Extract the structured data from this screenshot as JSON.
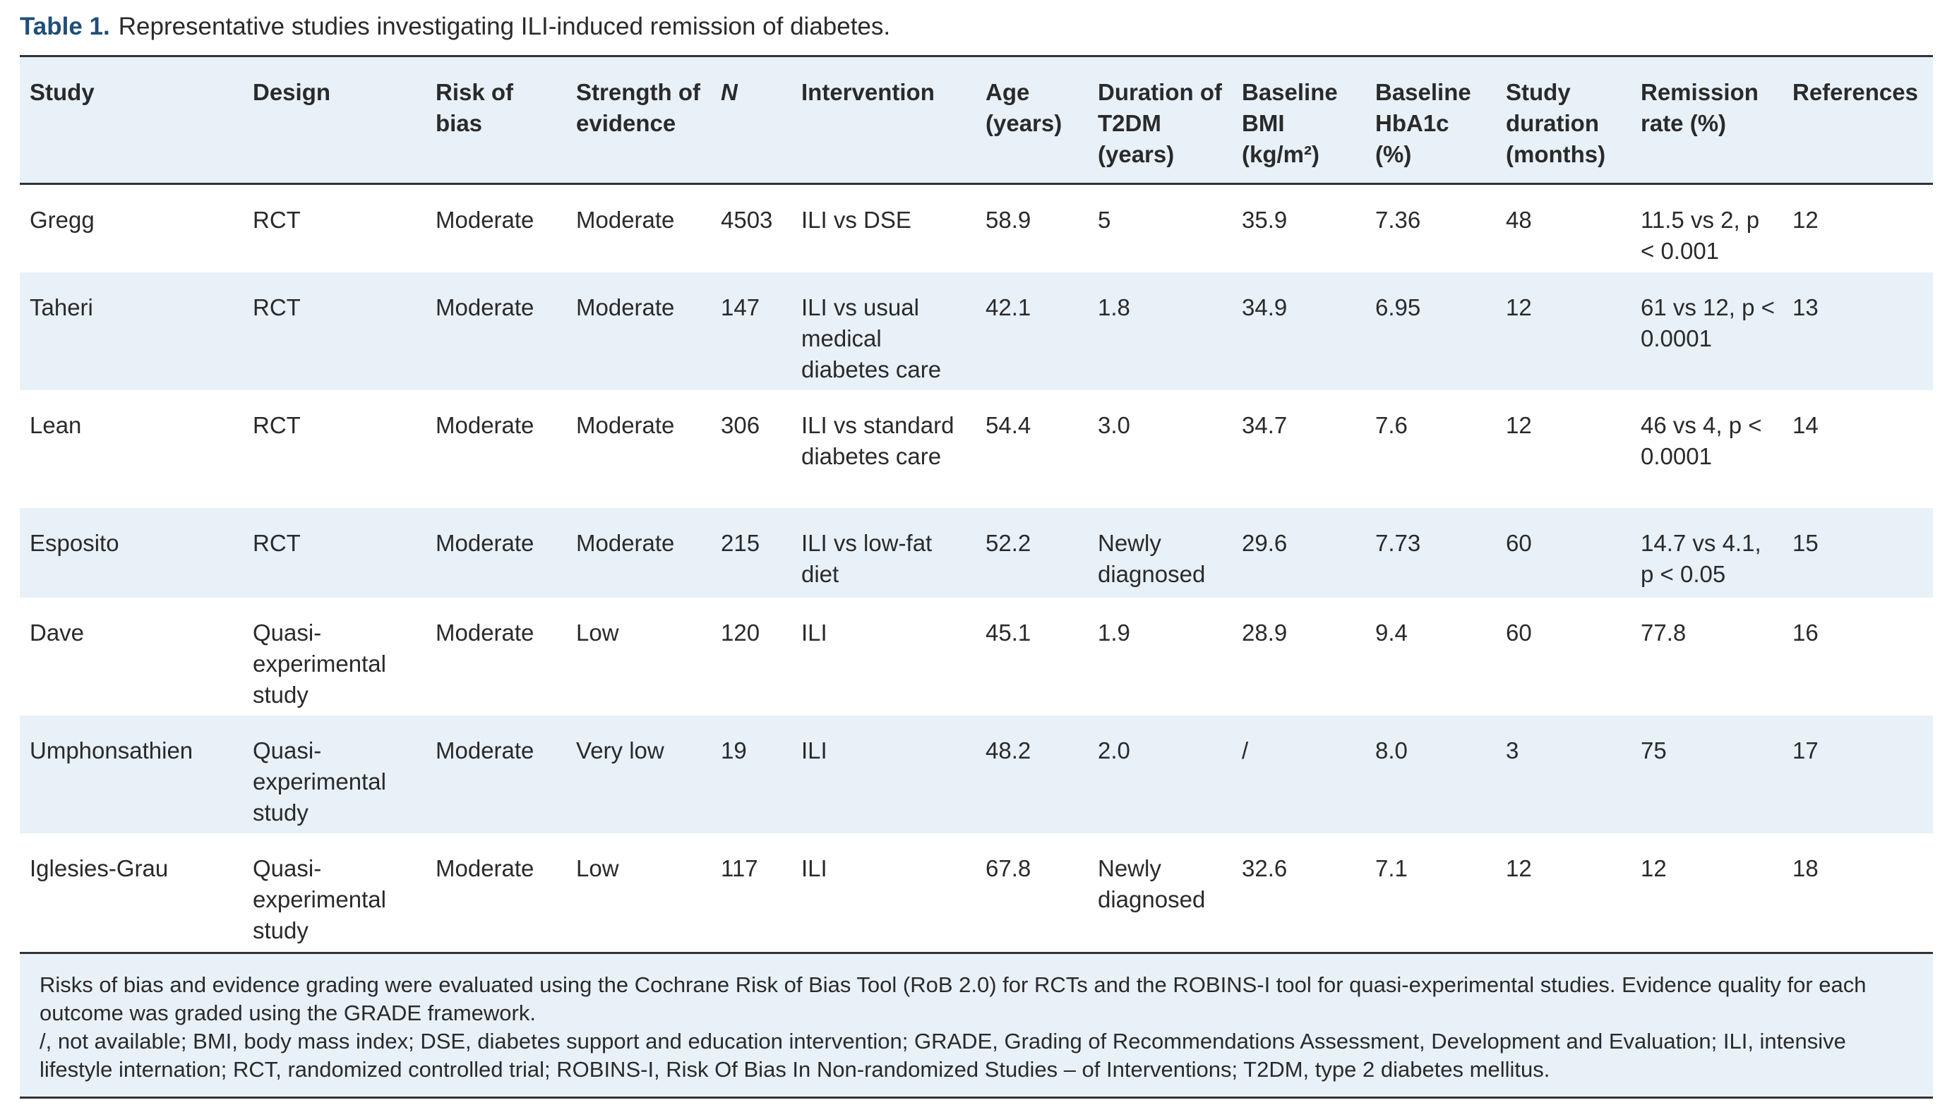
{
  "caption": {
    "label": "Table 1.",
    "text": "Representative studies investigating ILI-induced remission of diabetes."
  },
  "table": {
    "header": [
      "Study",
      "Design",
      "Risk of bias",
      "Strength of evidence",
      "N",
      "Intervention",
      "Age (years)",
      "Duration of T2DM (years)",
      "Baseline BMI (kg/m²)",
      "Baseline HbA1c (%)",
      "Study duration (months)",
      "Remission rate (%)",
      "References"
    ],
    "rows": [
      [
        "Gregg",
        "RCT",
        "Moderate",
        "Moderate",
        "4503",
        "ILI vs DSE",
        "58.9",
        "5",
        "35.9",
        "7.36",
        "48",
        "11.5 vs 2, p < 0.001",
        "12"
      ],
      [
        "Taheri",
        "RCT",
        "Moderate",
        "Moderate",
        "147",
        "ILI vs usual medical diabetes care",
        "42.1",
        "1.8",
        "34.9",
        "6.95",
        "12",
        "61 vs 12, p < 0.0001",
        "13"
      ],
      [
        "Lean",
        "RCT",
        "Moderate",
        "Moderate",
        "306",
        "ILI vs standard diabetes care",
        "54.4",
        "3.0",
        "34.7",
        "7.6",
        "12",
        "46 vs 4, p < 0.0001",
        "14"
      ],
      [
        "Esposito",
        "RCT",
        "Moderate",
        "Moderate",
        "215",
        "ILI vs low-fat diet",
        "52.2",
        "Newly diagnosed",
        "29.6",
        "7.73",
        "60",
        "14.7 vs 4.1, p < 0.05",
        "15"
      ],
      [
        "Dave",
        "Quasi-experimental study",
        "Moderate",
        "Low",
        "120",
        "ILI",
        "45.1",
        "1.9",
        "28.9",
        "9.4",
        "60",
        "77.8",
        "16"
      ],
      [
        "Umphonsathien",
        "Quasi-experimental study",
        "Moderate",
        "Very low",
        "19",
        "ILI",
        "48.2",
        "2.0",
        "/",
        "8.0",
        "3",
        "75",
        "17"
      ],
      [
        "Iglesies-Grau",
        "Quasi-experimental study",
        "Moderate",
        "Low",
        "117",
        "ILI",
        "67.8",
        "Newly diagnosed",
        "32.6",
        "7.1",
        "12",
        "12",
        "18"
      ]
    ]
  },
  "notes": [
    "Risks of bias and evidence grading were evaluated using the Cochrane Risk of Bias Tool (RoB 2.0) for RCTs and the ROBINS-I tool for quasi-experimental studies. Evidence quality for each outcome was graded using the GRADE framework.",
    "/, not available; BMI, body mass index; DSE, diabetes support and education intervention; GRADE, Grading of Recommendations Assessment, Development and Evaluation; ILI, intensive lifestyle internation; RCT, randomized controlled trial; ROBINS-I, Risk Of Bias In Non-randomized Studies – of Interventions; T2DM, type 2 diabetes mellitus."
  ]
}
